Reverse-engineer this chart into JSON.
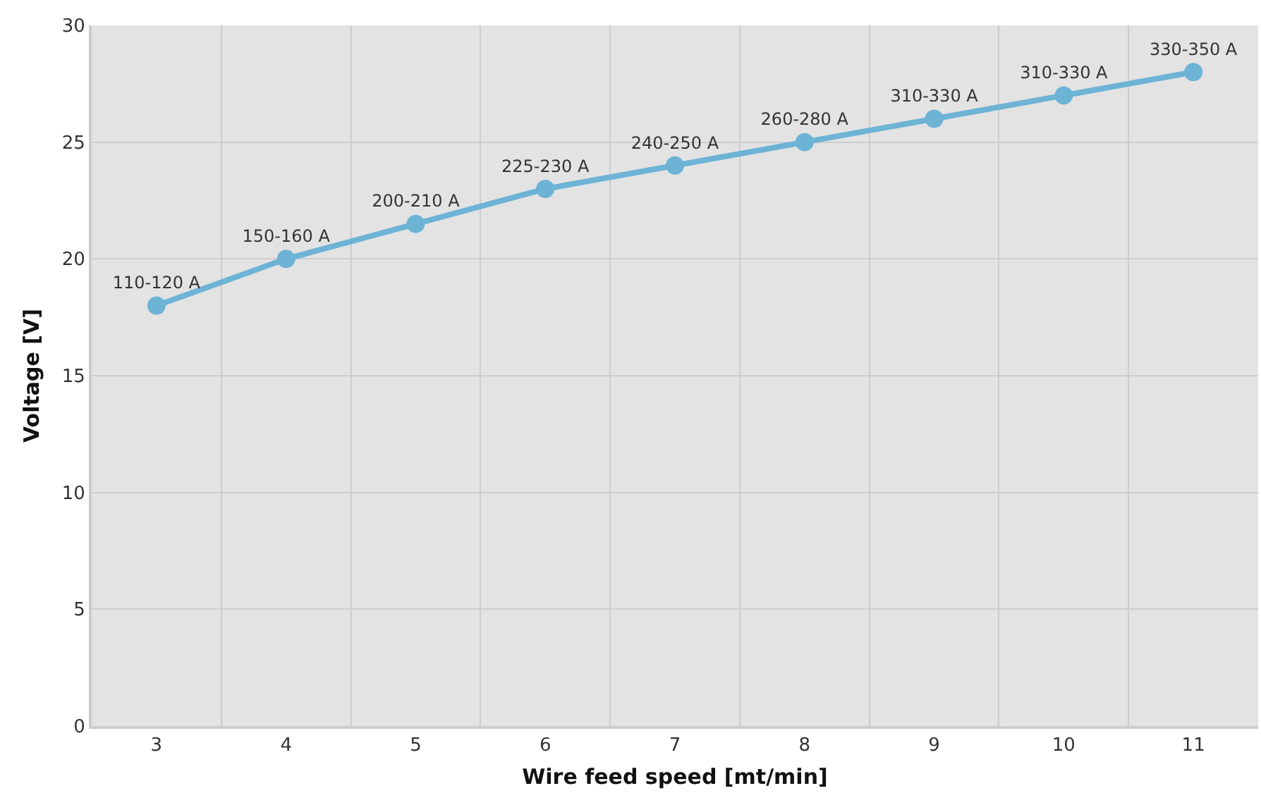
{
  "chart_data": {
    "type": "line",
    "xlabel": "Wire feed speed [mt/min]",
    "ylabel": "Voltage [V]",
    "categories": [
      "3",
      "4",
      "5",
      "6",
      "7",
      "8",
      "9",
      "10",
      "11"
    ],
    "series": [
      {
        "color": "#6db3d6",
        "values": [
          18,
          20,
          21.5,
          23,
          24,
          25,
          26,
          27,
          28
        ],
        "value_labels": [
          "110-120 A",
          "150-160 A",
          "200-210 A",
          "225-230 A",
          "240-250 A",
          "260-280 A",
          "310-330 A",
          "310-330 A",
          "330-350 A"
        ]
      }
    ],
    "ylim": [
      0,
      30
    ],
    "yticks": [
      0,
      5,
      10,
      15,
      20,
      25,
      30
    ],
    "grid": true,
    "marker": "circle",
    "line_style": "solid",
    "legend": false
  }
}
